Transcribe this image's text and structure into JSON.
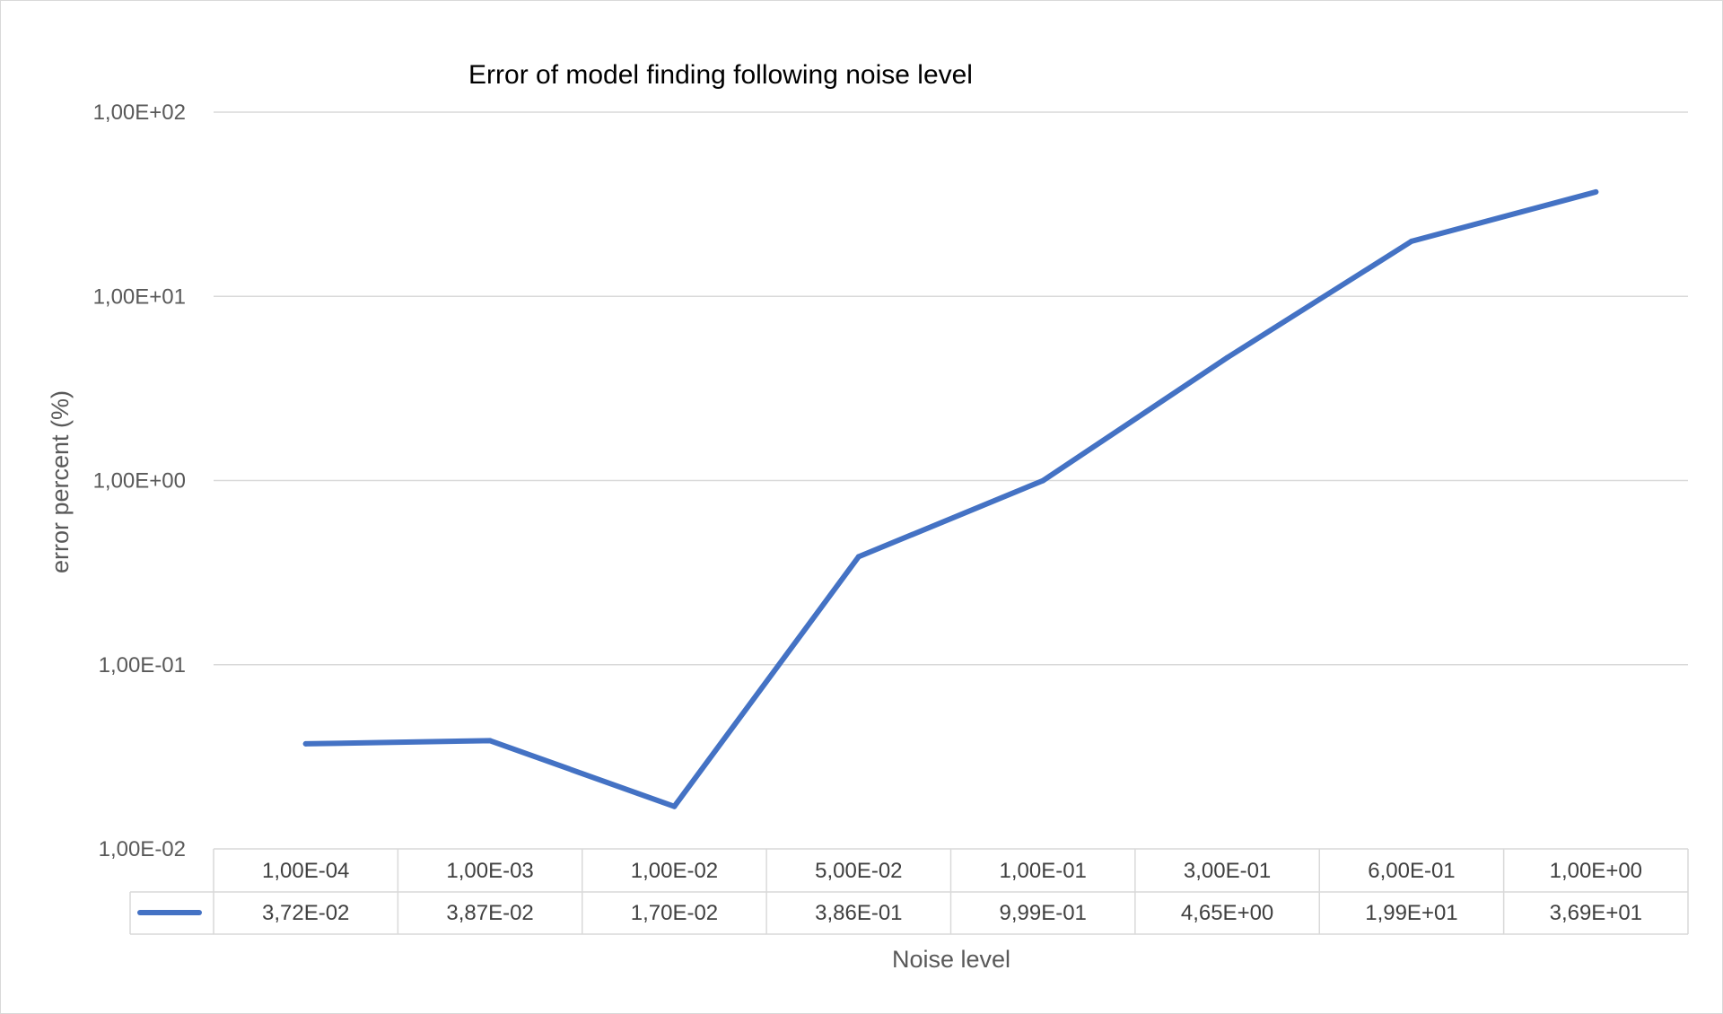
{
  "chart_data": {
    "type": "line",
    "title": "Error of model finding following noise level",
    "xlabel": "Noise level",
    "ylabel": "error percent (%)",
    "y_scale": "log",
    "ylim": [
      0.01,
      100
    ],
    "y_ticks": [
      0.01,
      0.1,
      1,
      10,
      100
    ],
    "y_tick_labels": [
      "1,00E-02",
      "1,00E-01",
      "1,00E+00",
      "1,00E+01",
      "1,00E+02"
    ],
    "grid": true,
    "legend": "data-table",
    "categories": [
      "1,00E-04",
      "1,00E-03",
      "1,00E-02",
      "5,00E-02",
      "1,00E-01",
      "3,00E-01",
      "6,00E-01",
      "1,00E+00"
    ],
    "series": [
      {
        "values": [
          0.0372,
          0.0387,
          0.017,
          0.386,
          0.999,
          4.65,
          19.9,
          36.9
        ],
        "value_labels": [
          "3,72E-02",
          "3,87E-02",
          "1,70E-02",
          "3,86E-01",
          "9,99E-01",
          "4,65E+00",
          "1,99E+01",
          "3,69E+01"
        ],
        "color": "#4472c4"
      }
    ]
  }
}
